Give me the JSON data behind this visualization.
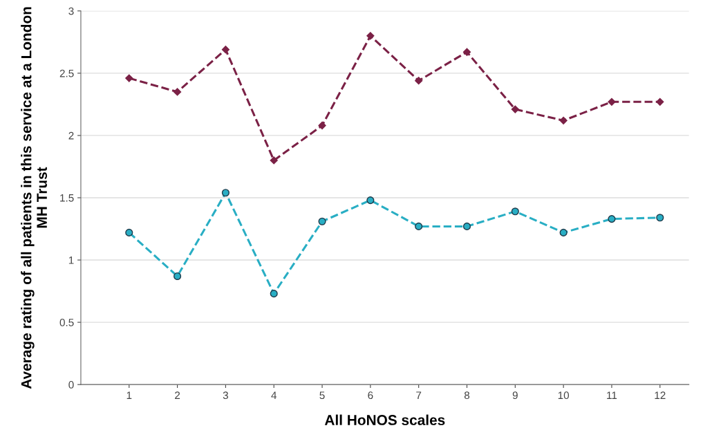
{
  "chart_data": {
    "type": "line",
    "xlabel": "All HoNOS scales",
    "ylabel": "Average rating of all patients in this service at a London MH Trust",
    "x": [
      1,
      2,
      3,
      4,
      5,
      6,
      7,
      8,
      9,
      10,
      11,
      12
    ],
    "xlim": [
      0,
      12.6
    ],
    "xticks": [
      1,
      2,
      3,
      4,
      5,
      6,
      7,
      8,
      9,
      10,
      11,
      12
    ],
    "ylim": [
      0,
      3
    ],
    "yticks": [
      0,
      0.5,
      1,
      1.5,
      2,
      2.5,
      3
    ],
    "grid": "y",
    "line_style": "dashed",
    "legend": false,
    "series": [
      {
        "color": "#7b2146",
        "marker": "diamond",
        "values": [
          2.46,
          2.35,
          2.69,
          1.8,
          2.08,
          2.8,
          2.44,
          2.67,
          2.21,
          2.12,
          2.27,
          2.27
        ]
      },
      {
        "color": "#29aec4",
        "marker": "circle",
        "values": [
          1.22,
          0.87,
          1.54,
          0.73,
          1.31,
          1.48,
          1.27,
          1.27,
          1.39,
          1.22,
          1.33,
          1.34
        ]
      }
    ]
  }
}
